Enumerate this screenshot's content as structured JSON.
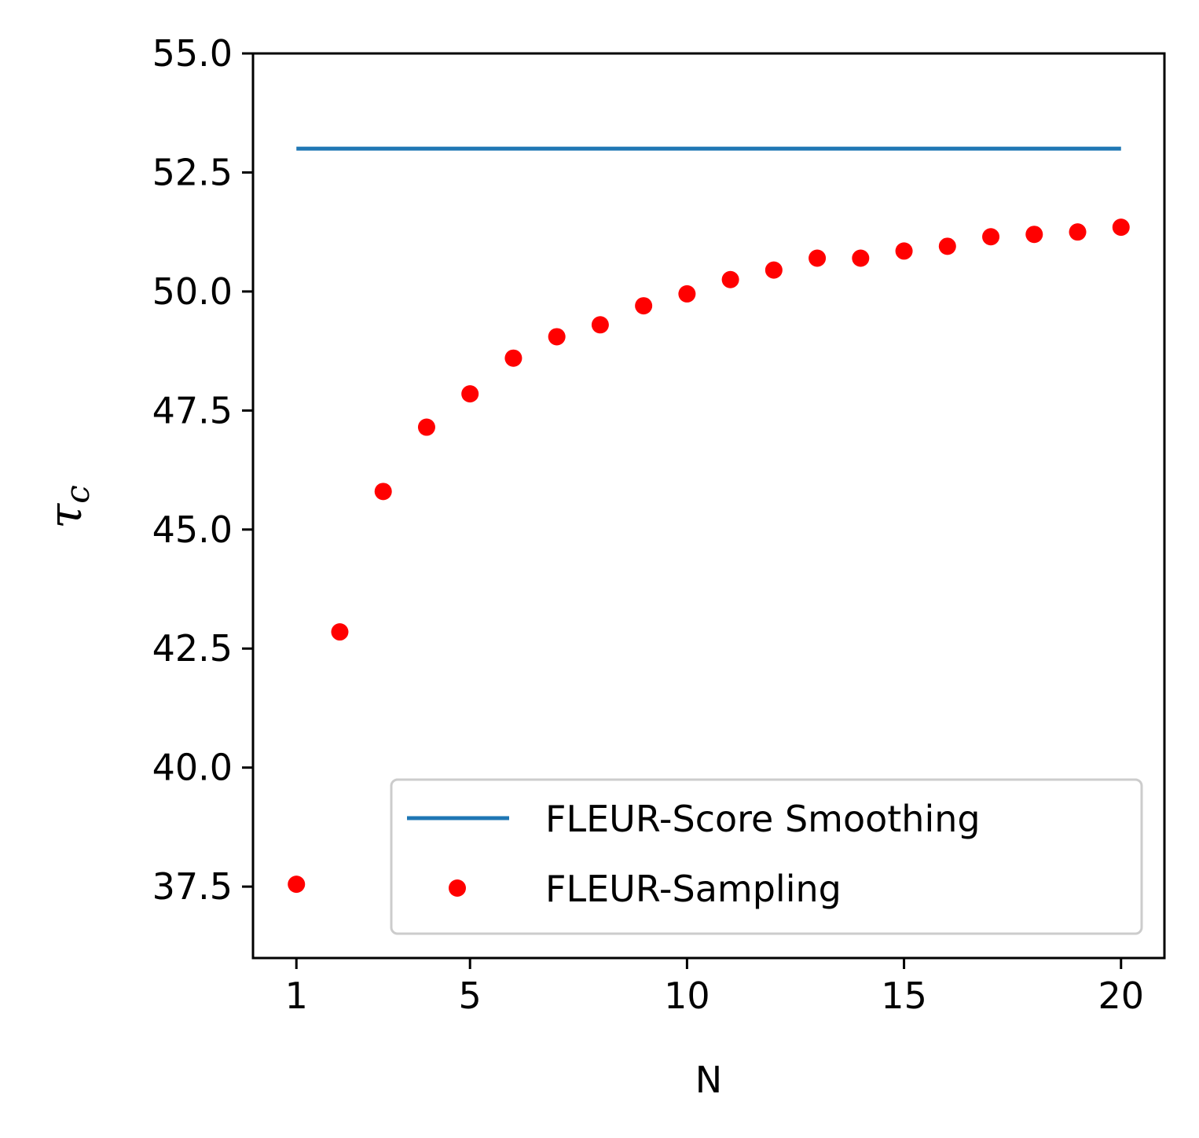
{
  "chart_data": {
    "type": "line+scatter",
    "xlabel": "N",
    "ylabel": "τ",
    "ylabel_subscript": "c",
    "xlim": [
      0,
      21
    ],
    "ylim": [
      36,
      55
    ],
    "xticks": [
      1,
      5,
      10,
      15,
      20
    ],
    "yticks": [
      37.5,
      40.0,
      42.5,
      45.0,
      47.5,
      50.0,
      52.5,
      55.0
    ],
    "ytick_labels": [
      "37.5",
      "40.0",
      "42.5",
      "45.0",
      "47.5",
      "50.0",
      "52.5",
      "55.0"
    ],
    "grid": false,
    "legend_position": "lower-right",
    "series": [
      {
        "name": "FLEUR-Score Smoothing",
        "kind": "line",
        "color": "#1f77b4",
        "x": [
          1,
          20
        ],
        "y": [
          53.0,
          53.0
        ]
      },
      {
        "name": "FLEUR-Sampling",
        "kind": "scatter",
        "color": "#ff0000",
        "x": [
          1,
          2,
          3,
          4,
          5,
          6,
          7,
          8,
          9,
          10,
          11,
          12,
          13,
          14,
          15,
          16,
          17,
          18,
          19,
          20
        ],
        "y": [
          37.55,
          42.85,
          45.8,
          47.15,
          47.85,
          48.6,
          49.05,
          49.3,
          49.7,
          49.95,
          50.25,
          50.45,
          50.7,
          50.7,
          50.85,
          50.95,
          51.15,
          51.2,
          51.25,
          51.35
        ]
      }
    ]
  }
}
